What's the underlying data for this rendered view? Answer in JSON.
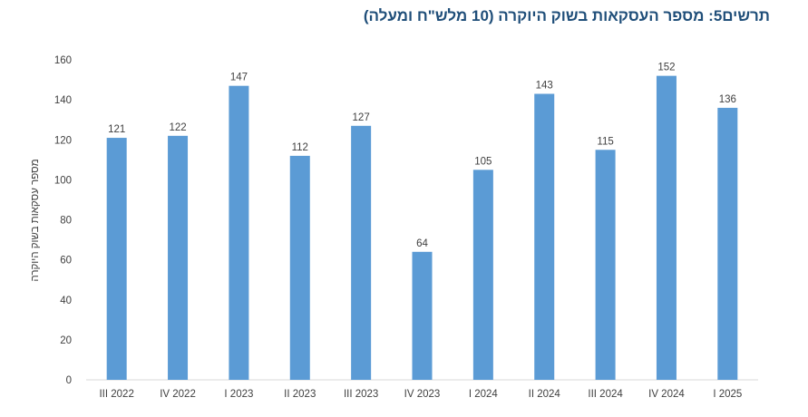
{
  "chart_data": {
    "type": "bar",
    "title": "תרשים5: מספר העסקאות בשוק היוקרה (10 מלש\"ח ומעלה)",
    "ylabel": "מספר עסקאות בשוק היוקרה",
    "xlabel": "",
    "categories": [
      "III 2022",
      "IV 2022",
      "I 2023",
      "II 2023",
      "III 2023",
      "IV 2023",
      "I 2024",
      "II 2024",
      "III 2024",
      "IV 2024",
      "I 2025"
    ],
    "values": [
      121,
      122,
      147,
      112,
      127,
      64,
      105,
      143,
      115,
      152,
      136
    ],
    "ylim": [
      0,
      160
    ],
    "yticks": [
      0,
      20,
      40,
      60,
      80,
      100,
      120,
      140,
      160
    ],
    "bar_color": "#5b9bd5",
    "grid": false,
    "legend": "none"
  }
}
